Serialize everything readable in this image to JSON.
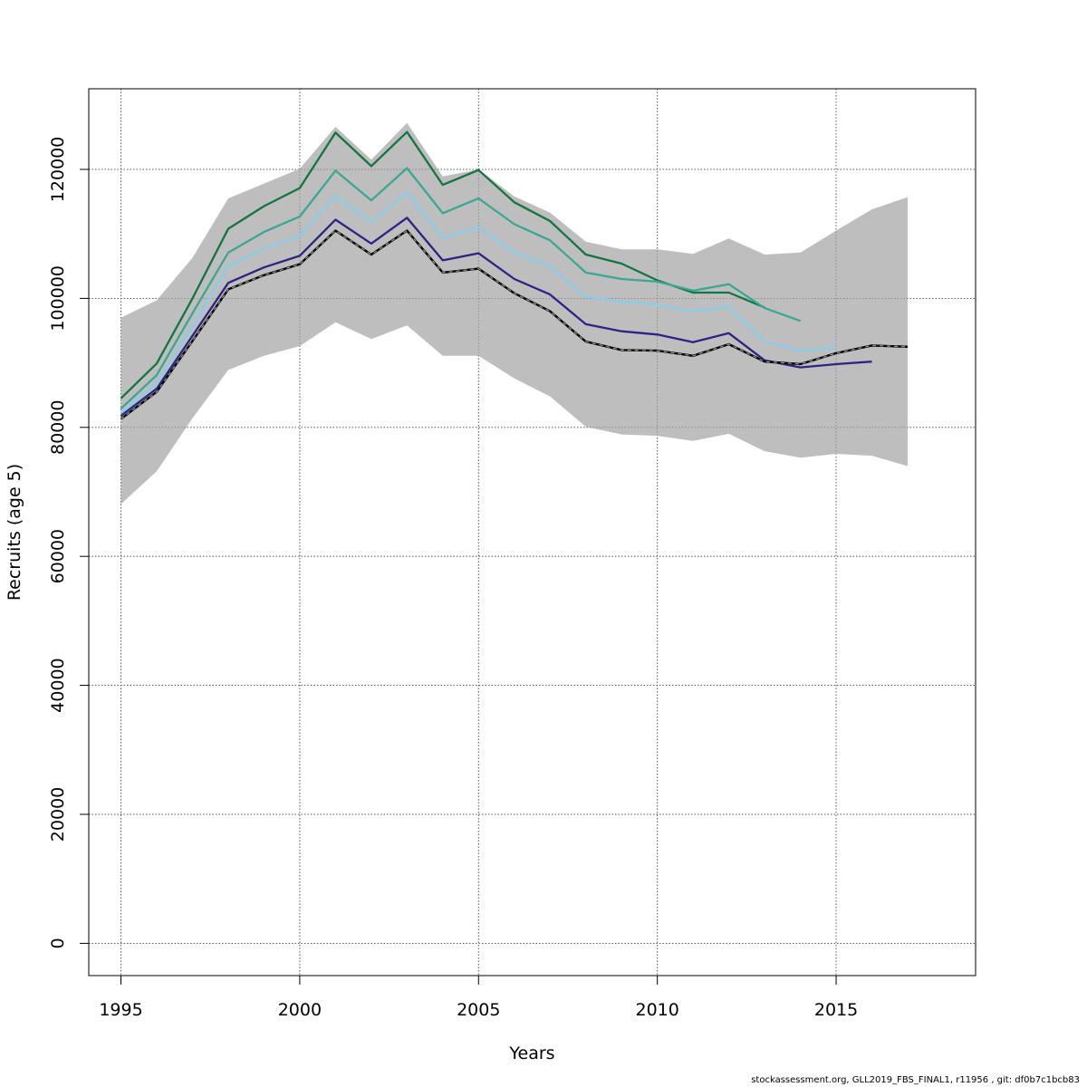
{
  "chart_data": {
    "type": "line",
    "title": "",
    "xlabel": "Years",
    "ylabel": "Recruits (age 5)",
    "xlim": [
      1994.1,
      2018.9
    ],
    "ylim": [
      -5000,
      132500
    ],
    "x_ticks": [
      1995,
      2000,
      2005,
      2010,
      2015
    ],
    "y_ticks": [
      0,
      20000,
      40000,
      60000,
      80000,
      100000,
      120000
    ],
    "grid": true,
    "legend": "none",
    "band": {
      "color": "#bebebe",
      "x": [
        1995,
        1996,
        1997,
        1998,
        1999,
        2000,
        2001,
        2002,
        2003,
        2004,
        2005,
        2006,
        2007,
        2008,
        2009,
        2010,
        2011,
        2012,
        2013,
        2014,
        2015,
        2016,
        2017
      ],
      "upper": [
        97000,
        99700,
        106300,
        115500,
        117800,
        120100,
        126600,
        121500,
        127200,
        118900,
        120000,
        115800,
        113300,
        108800,
        107600,
        107600,
        106900,
        109300,
        106800,
        107100,
        110500,
        113800,
        115700
      ],
      "lower": [
        68100,
        73200,
        81400,
        88900,
        91100,
        92600,
        96300,
        93700,
        95800,
        91100,
        91100,
        87600,
        84800,
        80100,
        78900,
        78700,
        77900,
        79000,
        76300,
        75300,
        75900,
        75600,
        74000
      ]
    },
    "series": [
      {
        "color": "#222222",
        "dashed": true,
        "x": [
          1995,
          1996,
          1997,
          1998,
          1999,
          2000,
          2001,
          2002,
          2003,
          2004,
          2005,
          2006,
          2007,
          2008,
          2009,
          2010,
          2011,
          2012,
          2013,
          2014,
          2015,
          2016,
          2017
        ],
        "values": [
          81300,
          85500,
          93400,
          101400,
          103600,
          105300,
          110500,
          106800,
          110500,
          104000,
          104600,
          100800,
          98000,
          93300,
          92000,
          91900,
          91100,
          92900,
          90200,
          89800,
          91500,
          92700,
          92500
        ]
      },
      {
        "color": "#2c2484",
        "x": [
          1995,
          1996,
          1997,
          1998,
          1999,
          2000,
          2001,
          2002,
          2003,
          2004,
          2005,
          2006,
          2007,
          2008,
          2009,
          2010,
          2011,
          2012,
          2013,
          2014,
          2015,
          2016
        ],
        "values": [
          81800,
          86000,
          94200,
          102400,
          104800,
          106600,
          112200,
          108500,
          112500,
          105900,
          107000,
          103000,
          100600,
          96000,
          94900,
          94400,
          93200,
          94600,
          90400,
          89300,
          89800,
          90200
        ]
      },
      {
        "color": "#87ceeb",
        "x": [
          1995,
          1996,
          1997,
          1998,
          1999,
          2000,
          2001,
          2002,
          2003,
          2004,
          2005,
          2006,
          2007,
          2008,
          2009,
          2010,
          2011,
          2012,
          2013,
          2014,
          2015
        ],
        "values": [
          82200,
          86800,
          95700,
          105000,
          107700,
          109700,
          115900,
          111800,
          116400,
          109400,
          111000,
          107100,
          105000,
          100300,
          99500,
          99000,
          98000,
          98700,
          93300,
          91900,
          92400
        ]
      },
      {
        "color": "#3aa890",
        "x": [
          1995,
          1996,
          1997,
          1998,
          1999,
          2000,
          2001,
          2002,
          2003,
          2004,
          2005,
          2006,
          2007,
          2008,
          2009,
          2010,
          2011,
          2012,
          2013,
          2014
        ],
        "values": [
          82900,
          88100,
          97700,
          107100,
          110300,
          112700,
          119800,
          115200,
          120200,
          113200,
          115500,
          111500,
          109000,
          104000,
          103000,
          102600,
          101200,
          102200,
          98500,
          96500
        ]
      },
      {
        "color": "#137540",
        "x": [
          1995,
          1996,
          1997,
          1998,
          1999,
          2000,
          2001,
          2002,
          2003,
          2004,
          2005,
          2006,
          2007,
          2008,
          2009,
          2010,
          2011,
          2012,
          2013
        ],
        "values": [
          84500,
          89900,
          100000,
          110800,
          114300,
          117100,
          125700,
          120500,
          125800,
          117600,
          119900,
          114900,
          112000,
          106800,
          105400,
          102800,
          100900,
          100900,
          98600
        ]
      }
    ]
  },
  "footer": "stockassessment.org, GLL2019_FBS_FINAL1, r11956 , git: df0b7c1bcb83"
}
